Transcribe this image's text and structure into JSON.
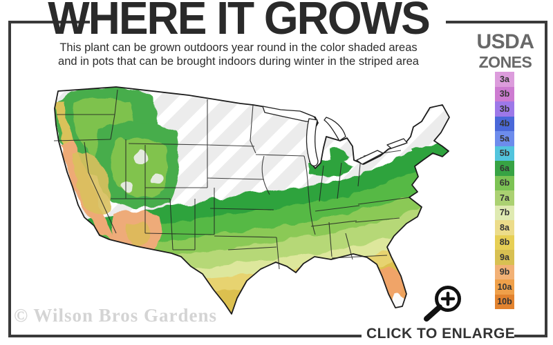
{
  "header": {
    "title": "WHERE IT GROWS",
    "subtitle_line1": "This plant can be grown outdoors year round in the color shaded areas",
    "subtitle_line2": "and in pots that can be brought indoors during winter in the striped area"
  },
  "legend": {
    "title_line1": "USDA",
    "title_line2": "ZONES",
    "zones": [
      {
        "label": "3a",
        "color": "#dc9cdc"
      },
      {
        "label": "3b",
        "color": "#cd7bd1"
      },
      {
        "label": "3b",
        "color": "#9d78e8"
      },
      {
        "label": "4b",
        "color": "#4a68d9"
      },
      {
        "label": "5a",
        "color": "#6d8cec"
      },
      {
        "label": "5b",
        "color": "#52c4dd"
      },
      {
        "label": "6a",
        "color": "#37a344"
      },
      {
        "label": "6b",
        "color": "#7cc354"
      },
      {
        "label": "7a",
        "color": "#abd172"
      },
      {
        "label": "7b",
        "color": "#dfeab2"
      },
      {
        "label": "8a",
        "color": "#ecdc8a"
      },
      {
        "label": "8b",
        "color": "#e7cf55"
      },
      {
        "label": "9a",
        "color": "#d8c052"
      },
      {
        "label": "9b",
        "color": "#f2b176"
      },
      {
        "label": "10a",
        "color": "#efa04a"
      },
      {
        "label": "10b",
        "color": "#e2832f"
      }
    ]
  },
  "map": {
    "watermark": "© Wilson Bros Gardens"
  },
  "footer": {
    "enlarge_label": "CLICK TO ENLARGE",
    "magnifier_icon": "magnifying-glass-plus"
  }
}
